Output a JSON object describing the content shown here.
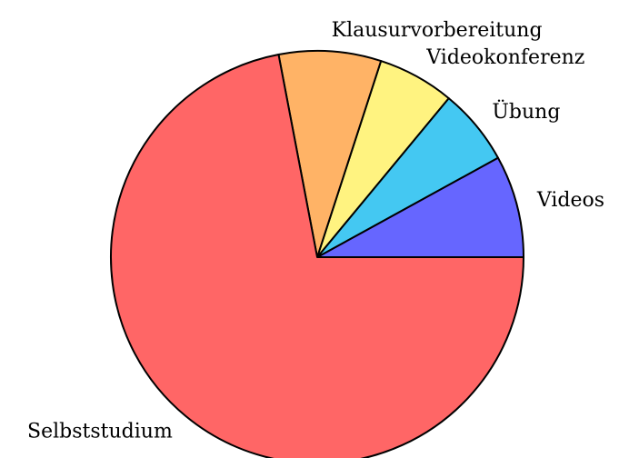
{
  "chart_data": {
    "type": "pie",
    "categories": [
      "Videos",
      "Übung",
      "Videokonferenz",
      "Klausurvorbereitung",
      "Selbststudium"
    ],
    "values": [
      8,
      6,
      6,
      8,
      72
    ],
    "colors": [
      "#6666ff",
      "#44c8f2",
      "#fff380",
      "#ffb366",
      "#ff6666"
    ],
    "start_angle": 0,
    "direction": "counterclockwise"
  }
}
